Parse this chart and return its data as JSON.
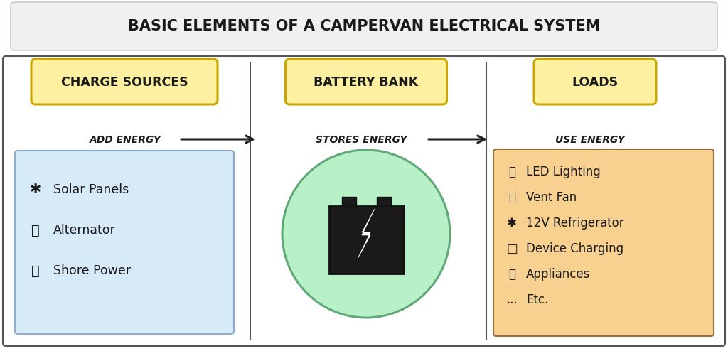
{
  "title": "Basic Elements of a Campervan Electrical System",
  "outer_bg": "#ffffff",
  "title_fontsize": 15,
  "header_labels": [
    "Charge Sources",
    "Battery Bank",
    "Loads"
  ],
  "header_bg": "#fdf0a0",
  "header_border": "#c8a800",
  "energy_labels": [
    "Add Energy",
    "Stores Energy",
    "Use Energy"
  ],
  "charge_items": [
    "✱  Solar Panels",
    "🚗  Alternator",
    "🔌  Shore Power"
  ],
  "load_items": [
    "💡 LED Lighting",
    "💨 Vent Fan",
    "✱ 12V Refrigerator",
    "□ Device Charging",
    "🔋 Appliances",
    "... Etc."
  ],
  "charge_bg": "#d6eaf8",
  "charge_border": "#8aaccf",
  "battery_bg": "#b8f0c8",
  "battery_border": "#60a878",
  "loads_bg": "#f8d090",
  "loads_border": "#907040",
  "panel_bg": "#ffffff",
  "panel_border": "#555555",
  "arrow_color": "#222222",
  "text_color": "#1a1a1a",
  "title_bg": "#f0f0f0",
  "title_border": "#cccccc"
}
